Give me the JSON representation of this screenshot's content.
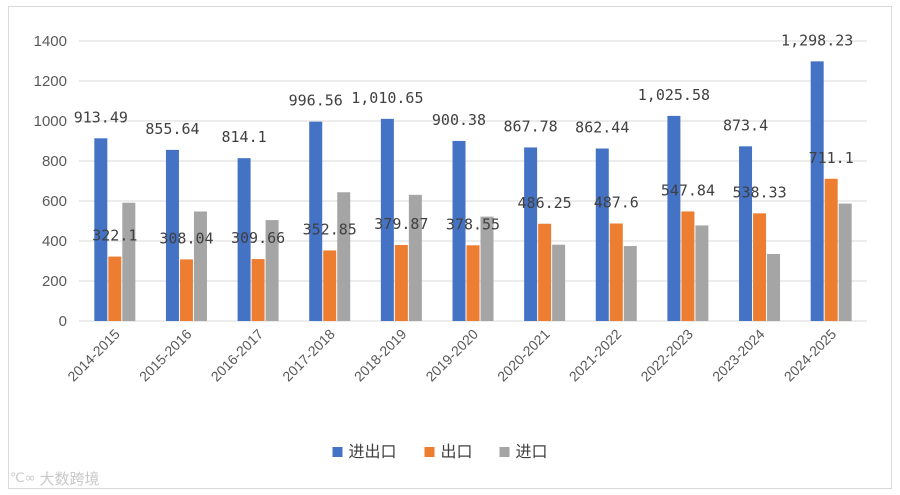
{
  "chart_data": {
    "type": "bar",
    "categories": [
      "2014-2015",
      "2015-2016",
      "2016-2017",
      "2017-2018",
      "2018-2019",
      "2019-2020",
      "2020-2021",
      "2021-2022",
      "2022-2023",
      "2023-2024",
      "2024-2025"
    ],
    "series": [
      {
        "name": "进出口",
        "color": "#4472C4",
        "values": [
          913.49,
          855.64,
          814.1,
          996.56,
          1010.65,
          900.38,
          867.78,
          862.44,
          1025.58,
          873.4,
          1298.23
        ],
        "labels": [
          "913.49",
          "855.64",
          "814.1",
          "996.56",
          "1,010.65",
          "900.38",
          "867.78",
          "862.44",
          "1,025.58",
          "873.4",
          "1,298.23"
        ]
      },
      {
        "name": "出口",
        "color": "#ED7D31",
        "values": [
          322.1,
          308.04,
          309.66,
          352.85,
          379.87,
          378.55,
          486.25,
          487.6,
          547.84,
          538.33,
          711.1
        ],
        "labels": [
          "322.1",
          "308.04",
          "309.66",
          "352.85",
          "379.87",
          "378.55",
          "486.25",
          "487.6",
          "547.84",
          "538.33",
          "711.1"
        ]
      },
      {
        "name": "进口",
        "color": "#A5A5A5",
        "values": [
          591.39,
          547.6,
          504.44,
          643.71,
          630.78,
          521.83,
          381.53,
          374.84,
          477.74,
          335.07,
          587.13
        ],
        "labels": []
      }
    ],
    "yticks": [
      "0",
      "200",
      "400",
      "600",
      "800",
      "1000",
      "1200",
      "1400"
    ],
    "ylim": [
      0,
      1400
    ],
    "grid": true,
    "legend_position": "bottom",
    "title": "",
    "xlabel": "",
    "ylabel": ""
  },
  "watermark": {
    "text": "大数跨境",
    "icon": "logo-glyph"
  }
}
